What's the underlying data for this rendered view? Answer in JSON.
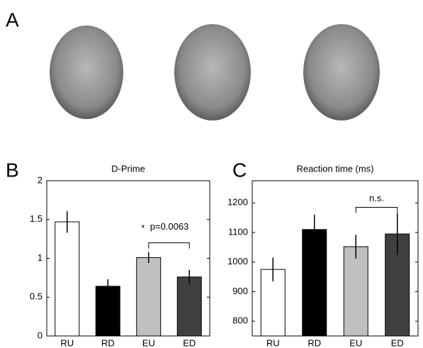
{
  "panel_labels": [
    "A",
    "B",
    "C"
  ],
  "chart_data": [
    {
      "type": "bar",
      "title": "D-Prime",
      "categories": [
        "RU",
        "RD",
        "EU",
        "ED"
      ],
      "values": [
        1.47,
        0.64,
        1.01,
        0.76
      ],
      "errors": [
        0.14,
        0.09,
        0.07,
        0.09
      ],
      "colors": [
        "#ffffff",
        "#000000",
        "#c0c0c0",
        "#404040"
      ],
      "ylim": [
        0,
        2
      ],
      "yticks": [
        0,
        0.5,
        1,
        1.5,
        2
      ],
      "annotation": {
        "star": "*",
        "text": "p=0.0063",
        "between": [
          2,
          3
        ],
        "at": 1.2
      }
    },
    {
      "type": "bar",
      "title": "Reaction time (ms)",
      "categories": [
        "RU",
        "RD",
        "EU",
        "ED"
      ],
      "values": [
        975,
        1110,
        1052,
        1095
      ],
      "errors": [
        40,
        50,
        40,
        70
      ],
      "colors": [
        "#ffffff",
        "#000000",
        "#c0c0c0",
        "#404040"
      ],
      "ylim": [
        750,
        1275
      ],
      "yticks": [
        800,
        900,
        1000,
        1100,
        1200
      ],
      "annotation": {
        "text": "n.s.",
        "between": [
          2,
          3
        ],
        "at": 1185
      }
    }
  ]
}
